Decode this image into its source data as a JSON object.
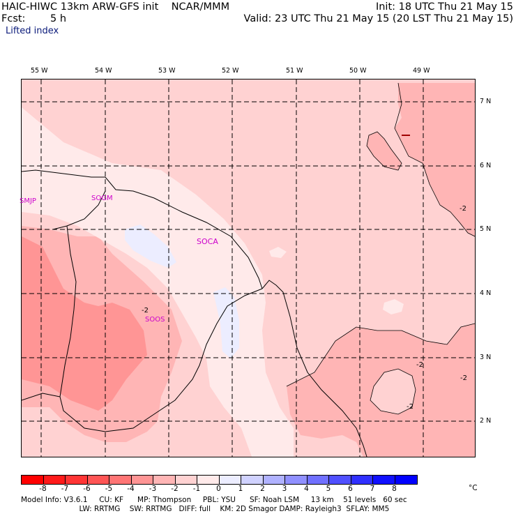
{
  "header": {
    "model_line": "HAIC-HIWC 13km ARW-GFS init    NCAR/MMM",
    "forecast_label": "Fcst:",
    "forecast_value": "5 h",
    "field_name": "Lifted index",
    "init": "Init: 18 UTC Thu 21 May 15",
    "valid": "Valid: 23 UTC Thu 21 May 15 (20 LST Thu 21 May 15)"
  },
  "longitude_labels": [
    "55 W",
    "54 W",
    "53 W",
    "52 W",
    "51 W",
    "50 W",
    "49 W"
  ],
  "latitude_labels": [
    "7 N",
    "6 N",
    "5 N",
    "4 N",
    "3 N",
    "2 N"
  ],
  "stations": [
    "SMJP",
    "SOGM",
    "SOCA",
    "SOOS"
  ],
  "contour_labels": [
    "-2",
    "-2",
    "-2",
    "-2",
    "-2"
  ],
  "colorbar": {
    "unit": "°C",
    "tick_labels": [
      "-8",
      "-7",
      "-6",
      "-5",
      "-4",
      "-3",
      "-2",
      "-1",
      "0",
      "1",
      "2",
      "3",
      "4",
      "5",
      "6",
      "7",
      "8"
    ],
    "colors": [
      "#ff0000",
      "#ff1a1a",
      "#ff3535",
      "#ff5555",
      "#ff7575",
      "#ff9595",
      "#ffb5b5",
      "#ffd2d2",
      "#ffeaea",
      "#ecedff",
      "#d0d2ff",
      "#b0b2ff",
      "#9090ff",
      "#7070ff",
      "#5050ff",
      "#3030ff",
      "#1010ff",
      "#0000ff"
    ]
  },
  "model_info": {
    "line1": "Model Info: V3.6.1     CU: KF      MP: Thompson     PBL: YSU      SF: Noah LSM     13 km    51 levels   60 sec",
    "line2": "                         LW: RRTMG    SW: RRTMG   DIFF: full    KM: 2D Smagor DAMP: Rayleigh3  SFLAY: MM5"
  }
}
